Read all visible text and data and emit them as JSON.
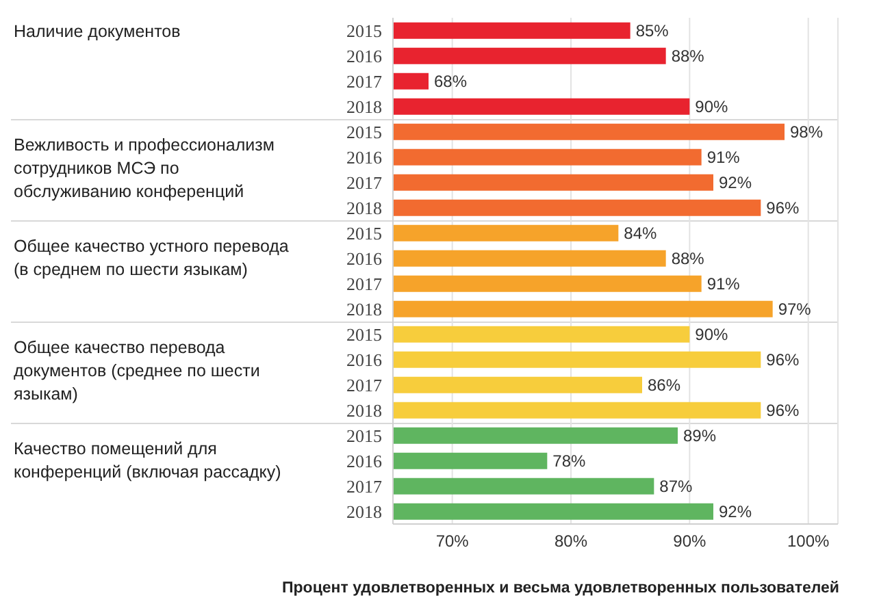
{
  "chart_data": {
    "type": "bar",
    "orientation": "horizontal",
    "xlabel": "Процент удовлетворенных и весьма удовлетворенных пользователей",
    "categories": [
      "2015",
      "2016",
      "2017",
      "2018",
      "2015",
      "2016",
      "2017",
      "2018",
      "2015",
      "2016",
      "2017",
      "2018",
      "2015",
      "2016",
      "2017",
      "2018",
      "2015",
      "2016",
      "2017",
      "2018"
    ],
    "values": [
      85,
      88,
      68,
      90,
      98,
      91,
      92,
      96,
      84,
      88,
      91,
      97,
      90,
      96,
      86,
      96,
      89,
      78,
      87,
      92
    ],
    "value_labels": [
      "85%",
      "88%",
      "68%",
      "90%",
      "98%",
      "91%",
      "92%",
      "96%",
      "84%",
      "88%",
      "91%",
      "97%",
      "90%",
      "96%",
      "86%",
      "96%",
      "89%",
      "78%",
      "87%",
      "92%"
    ],
    "colors": [
      "#e8232f",
      "#e8232f",
      "#e8232f",
      "#e8232f",
      "#f26b30",
      "#f26b30",
      "#f26b30",
      "#f26b30",
      "#f6a32a",
      "#f6a32a",
      "#f6a32a",
      "#f6a32a",
      "#f7cd3c",
      "#f7cd3c",
      "#f7cd3c",
      "#f7cd3c",
      "#5fb560",
      "#5fb560",
      "#5fb560",
      "#5fb560"
    ],
    "xlim": [
      65,
      102.5
    ],
    "xticks": [
      {
        "value": 70,
        "label": "70%"
      },
      {
        "value": 80,
        "label": "80%"
      },
      {
        "value": 90,
        "label": "90%"
      },
      {
        "value": 100,
        "label": "100%"
      }
    ],
    "grid": "x",
    "annotations": [
      "Наличие документов",
      "Вежливость и профессионализм сотрудников МСЭ по обслуживанию конференций",
      "Общее качество устного перевода (в среднем по шести языкам)",
      "Общее качество перевода документов (среднее по шести языкам)",
      "Качество помещений для конференций (включая рассадку)"
    ]
  }
}
